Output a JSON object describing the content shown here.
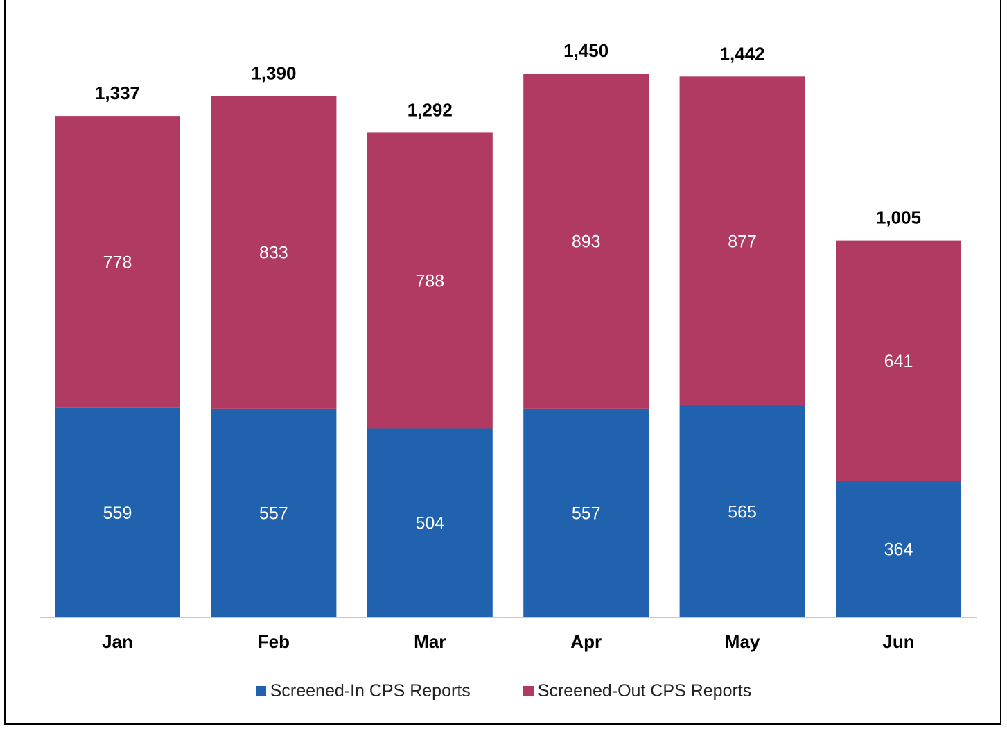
{
  "chart_data": {
    "type": "bar",
    "stacked": true,
    "categories": [
      "Jan",
      "Feb",
      "Mar",
      "Apr",
      "May",
      "Jun"
    ],
    "series": [
      {
        "name": "Screened-In CPS Reports",
        "color": "#2162AE",
        "values": [
          559,
          557,
          504,
          557,
          565,
          364
        ]
      },
      {
        "name": "Screened-Out CPS Reports",
        "color": "#B03A62",
        "values": [
          778,
          833,
          788,
          893,
          877,
          641
        ]
      }
    ],
    "totals": [
      "1,337",
      "1,390",
      "1,292",
      "1,450",
      "1,442",
      "1,005"
    ],
    "title": "",
    "xlabel": "",
    "ylabel": "",
    "ylim": [
      0,
      1450
    ],
    "grid": false,
    "legend_position": "bottom"
  }
}
